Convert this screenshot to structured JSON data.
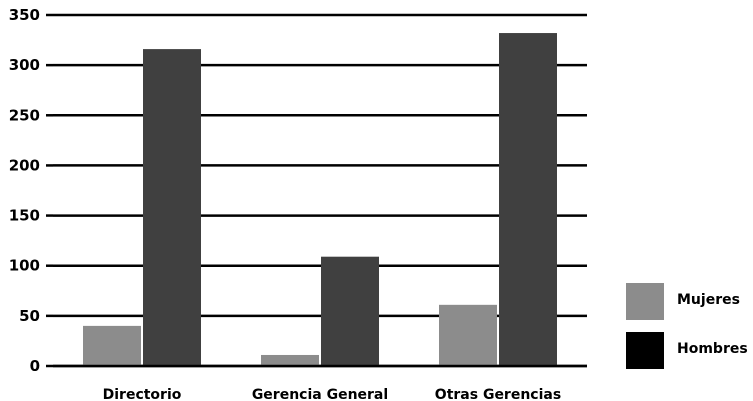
{
  "colors": {
    "mujeres": "#8c8c8c",
    "hombres_bar": "#404040",
    "hombres_legend": "#000000",
    "grid": "#000000"
  },
  "legend": {
    "placement": "right",
    "items": [
      {
        "label": "Mujeres",
        "color": "#8c8c8c"
      },
      {
        "label": "Hombres",
        "color": "#000000"
      }
    ]
  },
  "chart_data": {
    "type": "bar",
    "categories": [
      "Directorio",
      "Gerencia General",
      "Otras Gerencias"
    ],
    "series": [
      {
        "name": "Mujeres",
        "values": [
          40,
          11,
          61
        ]
      },
      {
        "name": "Hombres",
        "values": [
          316,
          109,
          332
        ]
      }
    ],
    "ylim": [
      0,
      350
    ],
    "yticks": [
      0,
      50,
      100,
      150,
      200,
      250,
      300,
      350
    ],
    "ytick_labels": [
      "0",
      "50",
      "100",
      "150",
      "200",
      "250",
      "300",
      "350"
    ],
    "grid": true,
    "title": "",
    "xlabel": "",
    "ylabel": ""
  }
}
